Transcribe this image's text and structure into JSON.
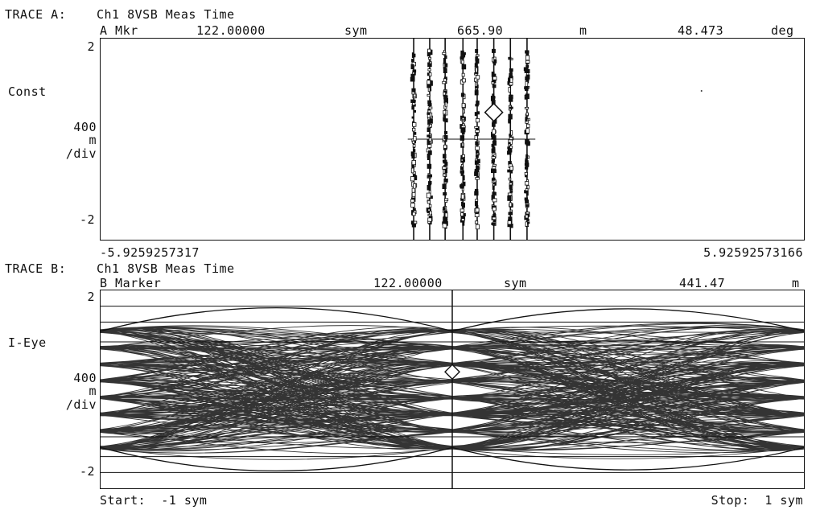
{
  "traceA": {
    "header": "TRACE A:",
    "title": "Ch1 8VSB Meas Time",
    "marker": {
      "label": "A Mkr",
      "x_value": "122.00000",
      "x_unit": "sym",
      "y_value": "665.90",
      "y_unit": "m",
      "z_value": "48.473",
      "z_unit": "deg"
    },
    "y_top": "2",
    "y_bottom": "-2",
    "format": "Const",
    "scale_value": "400",
    "scale_unit": "m",
    "scale_per": "/div",
    "x_left": "-5.9259257317",
    "x_right": "5.92592573166"
  },
  "traceB": {
    "header": "TRACE B:",
    "title": "Ch1 8VSB Meas Time",
    "marker": {
      "label": "B Marker",
      "x_value": "122.00000",
      "x_unit": "sym",
      "y_value": "441.47",
      "y_unit": "m"
    },
    "y_top": "2",
    "y_bottom": "-2",
    "format": "I-Eye",
    "scale_value": "400",
    "scale_unit": "m",
    "scale_per": "/div",
    "start": "Start:  -1 sym",
    "stop": "Stop:  1 sym"
  },
  "chart_data": [
    {
      "type": "scatter",
      "name_on_chart": "Const",
      "xlim": [
        -5.9259257317,
        5.92592573166
      ],
      "ylim": [
        -2.5,
        2.5
      ],
      "symbol_levels": [
        -7,
        -5,
        -3,
        -1,
        1,
        3,
        5,
        7
      ],
      "symbol_x_positions": [
        -0.65,
        -0.38,
        -0.12,
        0.18,
        0.42,
        0.7,
        0.98,
        1.26
      ],
      "symbol_spread_y": [
        -2.2,
        2.2
      ],
      "reference_y": 0,
      "marker": {
        "x": 0.7,
        "y": 0.666
      }
    },
    {
      "type": "line",
      "name_on_chart": "I-Eye",
      "xlim": [
        -1,
        1
      ],
      "ylim": [
        -2.5,
        2.5
      ],
      "eye_levels": [
        1.47,
        1.05,
        0.63,
        0.21,
        -0.21,
        -0.63,
        -1.05,
        -1.47
      ],
      "horizontal_lines_y": [
        2.1,
        1.7,
        1.2,
        -1.2,
        -1.7,
        -2.1
      ],
      "marker": {
        "x": 0,
        "y": 0.441
      }
    }
  ]
}
